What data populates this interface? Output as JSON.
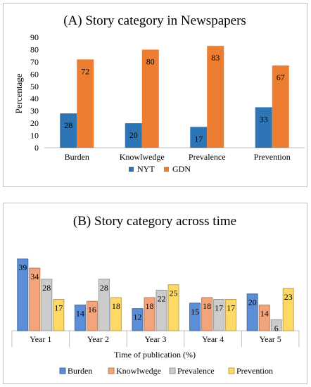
{
  "chart_data": [
    {
      "type": "bar",
      "title": "(A) Story category in Newspapers",
      "ylabel": "Percentage",
      "xlabel": "",
      "ylim": [
        0,
        90
      ],
      "yticks": [
        0,
        10,
        20,
        30,
        40,
        50,
        60,
        70,
        80,
        90
      ],
      "categories": [
        "Burden",
        "Knowlwedge",
        "Prevalence",
        "Prevention"
      ],
      "series": [
        {
          "name": "NYT",
          "values": [
            28,
            20,
            17,
            33
          ],
          "color": "#2e75b6"
        },
        {
          "name": "GDN",
          "values": [
            72,
            80,
            83,
            67
          ],
          "color": "#ed7d31"
        }
      ],
      "legend": "bottom",
      "grid": false
    },
    {
      "type": "bar",
      "title": "(B) Story category across time",
      "xlabel": "Time of publication (%)",
      "ylabel": "",
      "ylim": [
        0,
        40
      ],
      "categories": [
        "Year 1",
        "Year 2",
        "Year 3",
        "Year 4",
        "Year 5"
      ],
      "series": [
        {
          "name": "Burden",
          "values": [
            39,
            14,
            12,
            15,
            20
          ],
          "color": "#5b8ed6"
        },
        {
          "name": "Knowlwedge",
          "values": [
            34,
            16,
            18,
            18,
            14
          ],
          "color": "#f4a47a"
        },
        {
          "name": "Prevalence",
          "values": [
            28,
            28,
            22,
            17,
            6
          ],
          "color": "#cccccc"
        },
        {
          "name": "Prevention",
          "values": [
            17,
            18,
            25,
            17,
            23
          ],
          "color": "#ffd966"
        }
      ],
      "legend": "bottom",
      "grid": false
    }
  ]
}
